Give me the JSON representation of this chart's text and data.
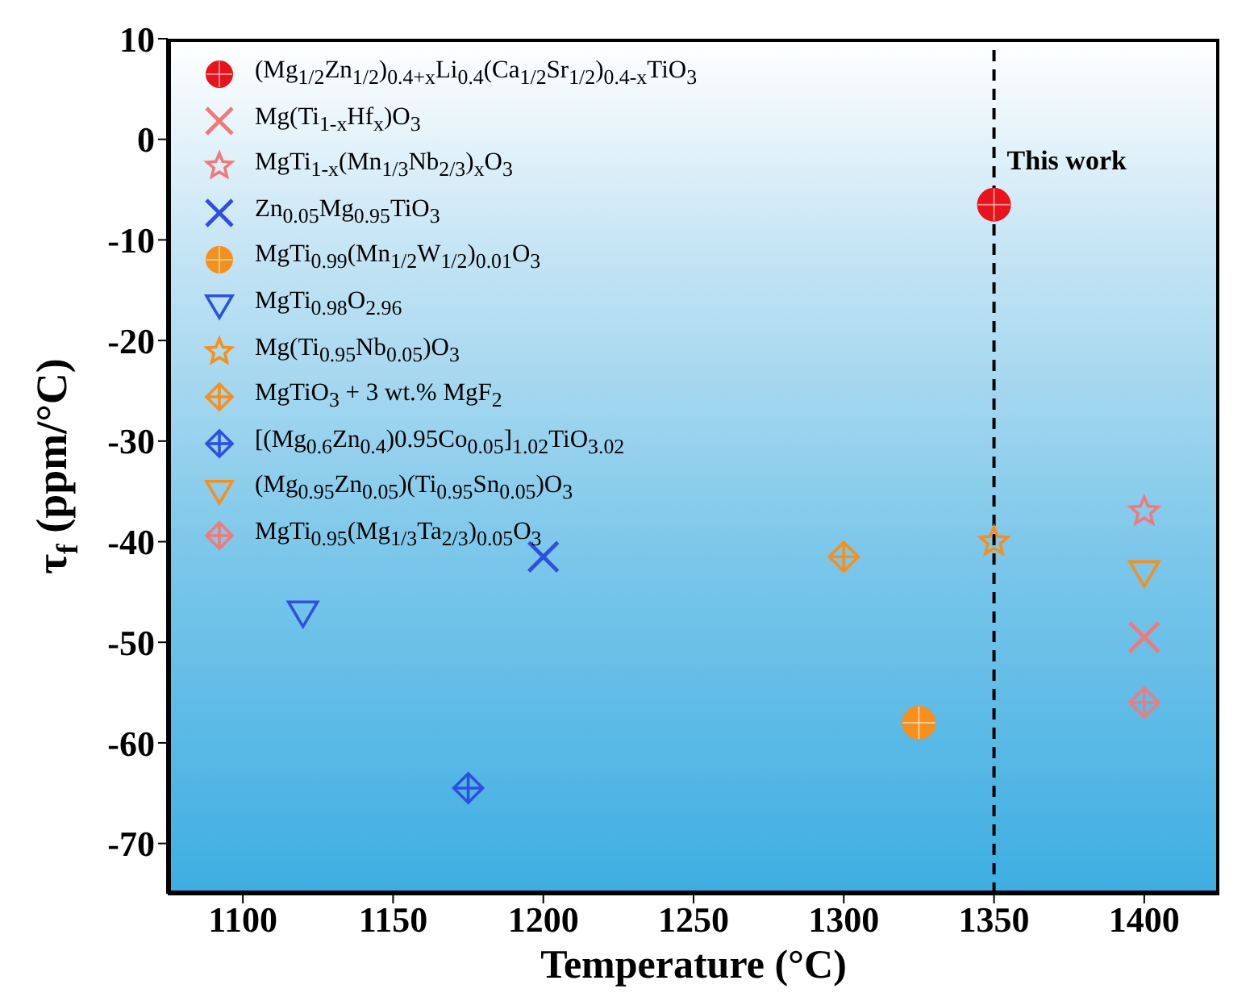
{
  "chart_data": {
    "type": "scatter",
    "xlabel": "Temperature (°C)",
    "ylabel": "τ$_{f}$ (ppm/°C)",
    "xlim": [
      1075,
      1425
    ],
    "xticks": [
      1100,
      1150,
      1200,
      1250,
      1300,
      1350,
      1400
    ],
    "ylim": [
      -75,
      10
    ],
    "yticks": [
      -70,
      -60,
      -50,
      -40,
      -30,
      -20,
      -10,
      0,
      10
    ],
    "grid": false,
    "legend": "top left",
    "ref_lines": [
      {
        "axis": "x",
        "value": 1350,
        "line_style": "dashed",
        "color": "#000000"
      }
    ],
    "annotations": [
      {
        "text": "This work",
        "x": 1350,
        "y": -6.5
      }
    ],
    "series": [
      {
        "name": "(Mg$_{1/2}$Zn$_{1/2}$)$_{0.4+x}$Li$_{0.4}$(Ca$_{1/2}$Sr$_{1/2}$)$_{0.4-x}$TiO$_{3}$",
        "color": "#e8141c",
        "marker": "circle",
        "x": [
          1350
        ],
        "values": [
          -6.5
        ]
      },
      {
        "name": "Mg(Ti$_{1-x}$Hf$_{x}$)O$_{3}$",
        "color": "#f07a7a",
        "marker": "cross",
        "x": [
          1400
        ],
        "values": [
          -49.5
        ]
      },
      {
        "name": "MgTi$_{1-x}$(Mn$_{1/3}$Nb$_{2/3}$)$_{x}$O$_{3}$",
        "color": "#f07a7a",
        "marker": "star",
        "x": [
          1400
        ],
        "values": [
          -37
        ]
      },
      {
        "name": "Zn$_{0.05}$Mg$_{0.95}$TiO$_{3}$",
        "color": "#2f4fe0",
        "marker": "cross",
        "x": [
          1200
        ],
        "values": [
          -41.5
        ]
      },
      {
        "name": "MgTi$_{0.99}$(Mn$_{1/2}$W$_{1/2}$)$_{0.01}$O$_{3}$",
        "color": "#f5901e",
        "marker": "circle",
        "x": [
          1325
        ],
        "values": [
          -58
        ]
      },
      {
        "name": "MgTi$_{0.98}$O$_{2.96}$",
        "color": "#2f4fe0",
        "marker": "triangle",
        "x": [
          1120
        ],
        "values": [
          -47
        ]
      },
      {
        "name": "Mg(Ti$_{0.95}$Nb$_{0.05}$)O$_{3}$",
        "color": "#f5901e",
        "marker": "star",
        "x": [
          1350
        ],
        "values": [
          -40
        ]
      },
      {
        "name": "MgTiO$_{3}$ + 3 wt.% MgF$_{2}$",
        "color": "#f5901e",
        "marker": "diamond",
        "x": [
          1300
        ],
        "values": [
          -41.5
        ]
      },
      {
        "name": "[(Mg$_{0.6}$Zn$_{0.4}$)0.95Co$_{0.05}$]$_{1.02}$TiO$_{3.02}$",
        "color": "#2f4fe0",
        "marker": "diamond",
        "x": [
          1175
        ],
        "values": [
          -64.5
        ]
      },
      {
        "name": "(Mg$_{0.95}$Zn$_{0.05}$)(Ti$_{0.95}$Sn$_{0.05}$)O$_{3}$",
        "color": "#f5901e",
        "marker": "triangle",
        "x": [
          1400
        ],
        "values": [
          -43
        ]
      },
      {
        "name": "MgTi$_{0.95}$(Mg$_{1/3}$Ta$_{2/3}$)$_{0.05}$O$_{3}$",
        "color": "#f07a7a",
        "marker": "diamond",
        "x": [
          1400
        ],
        "values": [
          -56
        ]
      }
    ]
  }
}
